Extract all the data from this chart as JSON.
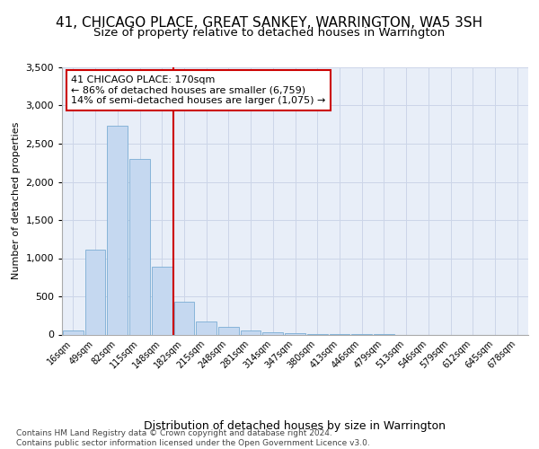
{
  "title": "41, CHICAGO PLACE, GREAT SANKEY, WARRINGTON, WA5 3SH",
  "subtitle": "Size of property relative to detached houses in Warrington",
  "xlabel": "Distribution of detached houses by size in Warrington",
  "ylabel": "Number of detached properties",
  "bar_color": "#c5d8f0",
  "bar_edge_color": "#7aadd4",
  "marker_line_color": "#cc0000",
  "annotation_text": "41 CHICAGO PLACE: 170sqm\n← 86% of detached houses are smaller (6,759)\n14% of semi-detached houses are larger (1,075) →",
  "annotation_box_color": "#ffffff",
  "annotation_box_edge": "#cc0000",
  "footer_text": "Contains HM Land Registry data © Crown copyright and database right 2024.\nContains public sector information licensed under the Open Government Licence v3.0.",
  "background_color": "#e8eef8",
  "categories": [
    "16sqm",
    "49sqm",
    "82sqm",
    "115sqm",
    "148sqm",
    "182sqm",
    "215sqm",
    "248sqm",
    "281sqm",
    "314sqm",
    "347sqm",
    "380sqm",
    "413sqm",
    "446sqm",
    "479sqm",
    "513sqm",
    "546sqm",
    "579sqm",
    "612sqm",
    "645sqm",
    "678sqm"
  ],
  "values": [
    50,
    1110,
    2740,
    2300,
    890,
    430,
    175,
    95,
    55,
    30,
    12,
    5,
    3,
    2,
    1,
    0,
    0,
    0,
    0,
    0,
    0
  ],
  "ylim": [
    0,
    3500
  ],
  "yticks": [
    0,
    500,
    1000,
    1500,
    2000,
    2500,
    3000,
    3500
  ],
  "marker_bar_index": 5,
  "grid_color": "#ccd5e8",
  "title_fontsize": 11,
  "subtitle_fontsize": 9.5,
  "xlabel_fontsize": 9,
  "ylabel_fontsize": 8
}
